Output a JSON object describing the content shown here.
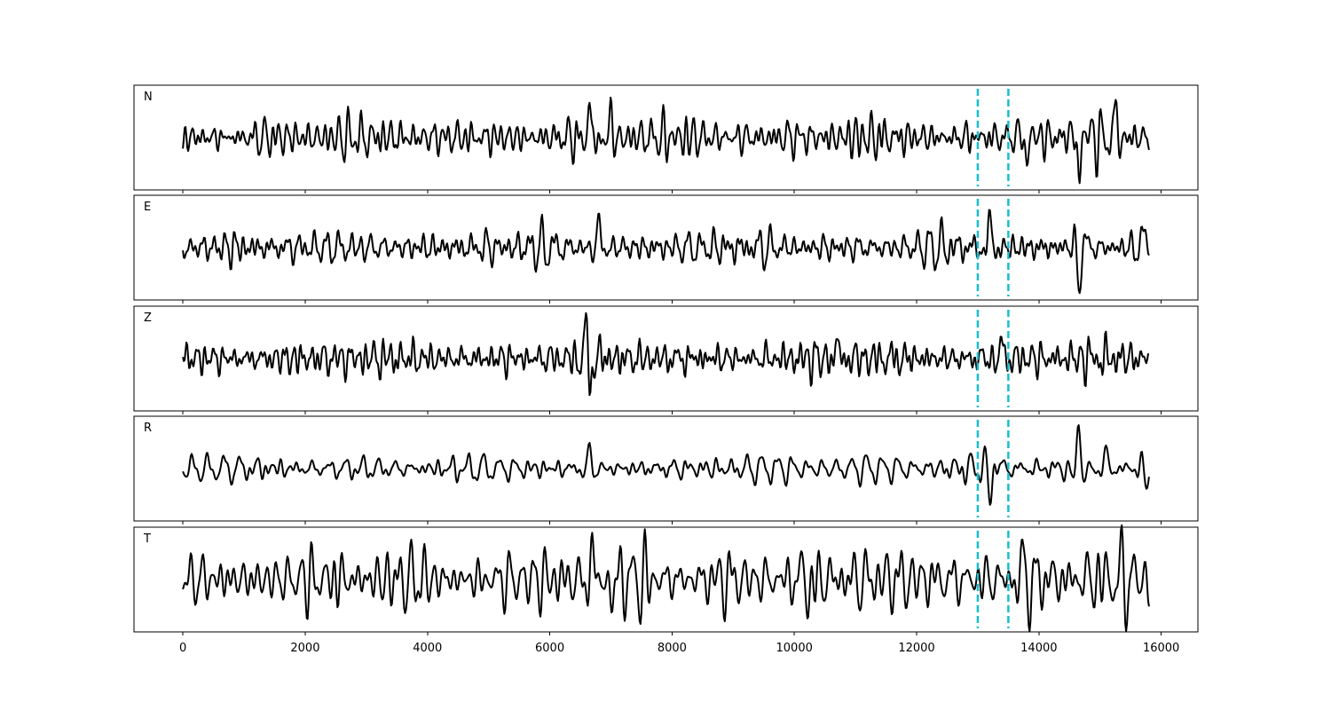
{
  "chart_data": {
    "type": "line",
    "layout": "stacked-panels",
    "xlim": [
      -800,
      16600
    ],
    "x_ticks": [
      0,
      2000,
      4000,
      6000,
      8000,
      10000,
      12000,
      14000,
      16000
    ],
    "x_tick_labels": [
      "0",
      "2000",
      "4000",
      "6000",
      "8000",
      "10000",
      "12000",
      "14000",
      "16000"
    ],
    "xlabel": "",
    "ylabel": "",
    "grid": false,
    "x_range_of_traces": [
      0,
      15800
    ],
    "vertical_markers": [
      {
        "x": 13000,
        "style": "dashed",
        "color": "#17becf"
      },
      {
        "x": 13500,
        "style": "dashed",
        "color": "#17becf"
      }
    ],
    "trace_color": "#000000",
    "panels": [
      {
        "label": "N",
        "ylim": [
          -1.1,
          1.1
        ],
        "noise_amplitude": 0.35,
        "events": [
          {
            "x": 6650,
            "amplitude": 0.75
          },
          {
            "x": 7000,
            "amplitude": 0.5
          },
          {
            "x": 14650,
            "amplitude": -1.0
          },
          {
            "x": 15250,
            "amplitude": 0.7
          },
          {
            "x": 13800,
            "amplitude": -0.6
          }
        ]
      },
      {
        "label": "E",
        "ylim": [
          -1.1,
          1.1
        ],
        "noise_amplitude": 0.3,
        "events": [
          {
            "x": 6800,
            "amplitude": 0.7
          },
          {
            "x": 13200,
            "amplitude": 0.8
          },
          {
            "x": 14650,
            "amplitude": -0.95
          },
          {
            "x": 15700,
            "amplitude": 0.45
          }
        ]
      },
      {
        "label": "Z",
        "ylim": [
          -1.1,
          1.1
        ],
        "noise_amplitude": 0.3,
        "events": [
          {
            "x": 6600,
            "amplitude": 1.0
          },
          {
            "x": 6650,
            "amplitude": -0.9
          },
          {
            "x": 10700,
            "amplitude": 0.5
          },
          {
            "x": 13400,
            "amplitude": 0.45
          }
        ]
      },
      {
        "label": "R",
        "ylim": [
          -1.1,
          1.1
        ],
        "noise_amplitude": 0.22,
        "events": [
          {
            "x": 6650,
            "amplitude": 0.45
          },
          {
            "x": 13200,
            "amplitude": -0.75
          },
          {
            "x": 14650,
            "amplitude": 1.0
          },
          {
            "x": 15100,
            "amplitude": 0.5
          },
          {
            "x": 15750,
            "amplitude": -0.4
          }
        ]
      },
      {
        "label": "T",
        "ylim": [
          -1.1,
          1.1
        ],
        "noise_amplitude": 0.55,
        "events": [
          {
            "x": 6700,
            "amplitude": 0.8
          },
          {
            "x": 7000,
            "amplitude": -0.7
          },
          {
            "x": 13800,
            "amplitude": 0.9
          },
          {
            "x": 13850,
            "amplitude": -0.8
          },
          {
            "x": 10300,
            "amplitude": -0.6
          }
        ]
      }
    ]
  }
}
